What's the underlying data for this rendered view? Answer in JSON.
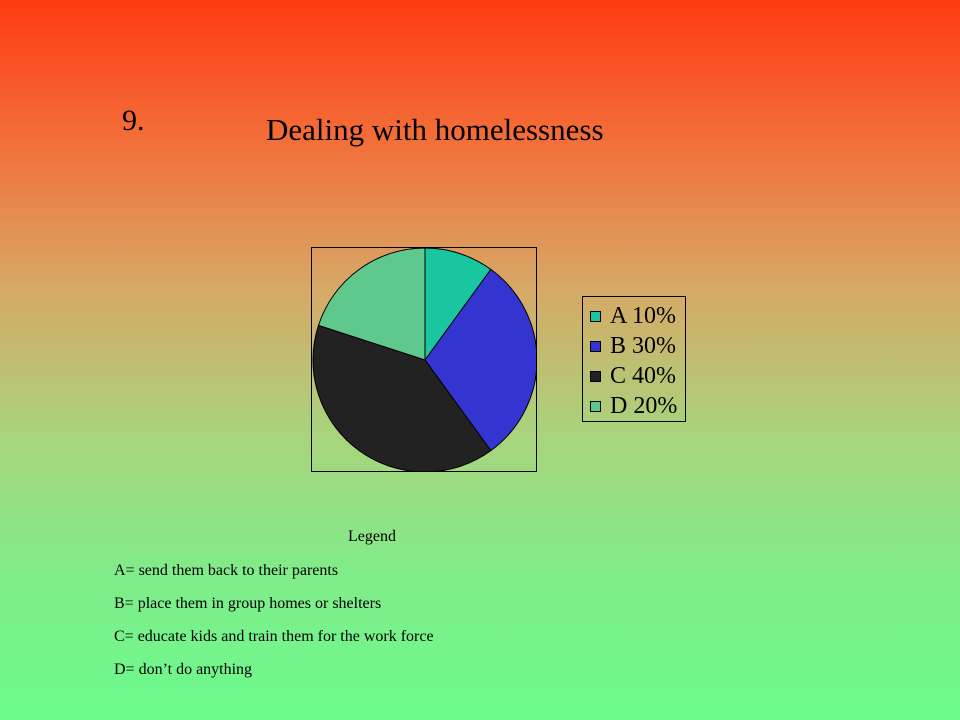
{
  "slide": {
    "number": "9.",
    "title": "Dealing with homelessness"
  },
  "chart_data": {
    "type": "pie",
    "categories": [
      "A",
      "B",
      "C",
      "D"
    ],
    "values": [
      10,
      30,
      40,
      20
    ],
    "labels": [
      "A 10%",
      "B 30%",
      "C 40%",
      "D 20%"
    ],
    "colors": [
      "#19c6a0",
      "#3434d0",
      "#222222",
      "#5fc88c"
    ],
    "legend_position": "right"
  },
  "key": {
    "heading": "Legend",
    "items": [
      "A= send them back to their parents",
      "B= place them in group homes or shelters",
      "C= educate kids and train them for the work force",
      "D= don’t do anything"
    ]
  }
}
